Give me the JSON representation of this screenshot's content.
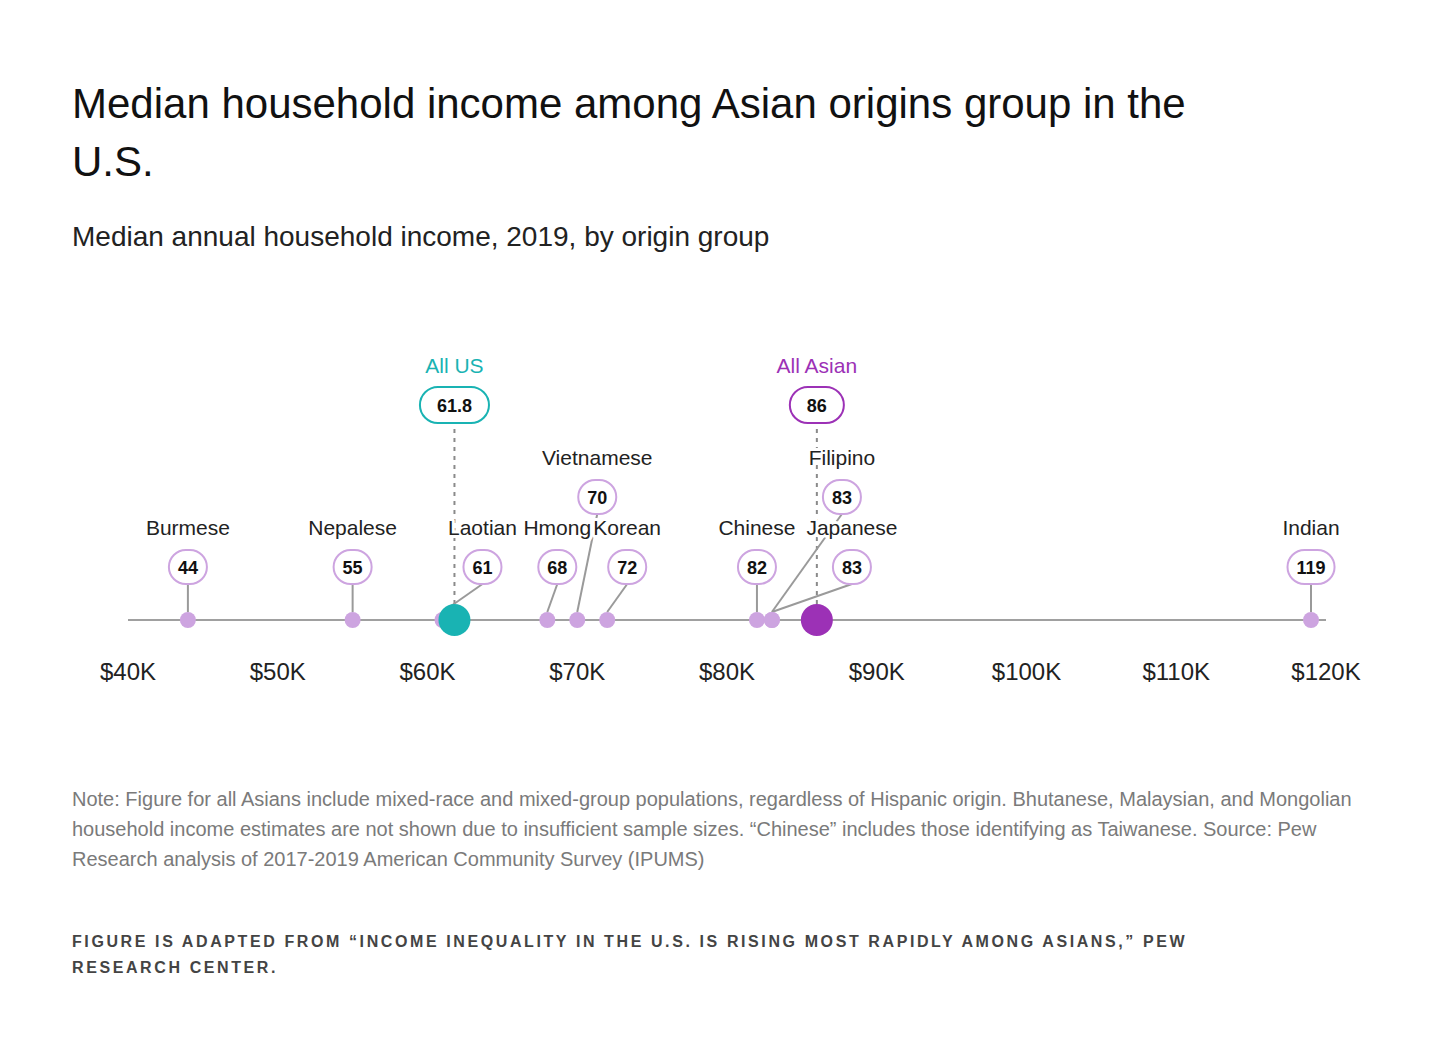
{
  "chart_data": {
    "type": "dot",
    "title": "Median household income among Asian origins group in the U.S.",
    "subtitle": "Median annual household income, 2019, by origin group",
    "categories": [
      "Burmese",
      "Nepalese",
      "Laotian",
      "All US",
      "Hmong",
      "Vietnamese",
      "Korean",
      "Chinese",
      "Japanese",
      "All Asian",
      "Filipino",
      "Indian"
    ],
    "values": [
      44,
      55,
      61,
      61.8,
      68,
      70,
      72,
      82,
      83,
      86,
      83,
      119
    ],
    "colors": [
      "#cda4e0",
      "#cda4e0",
      "#cda4e0",
      "#19b3b3",
      "#cda4e0",
      "#cda4e0",
      "#cda4e0",
      "#cda4e0",
      "#cda4e0",
      "#9c31b6",
      "#cda4e0",
      "#cda4e0"
    ],
    "xlim": [
      40,
      120
    ],
    "xticks": [
      {
        "value": 40,
        "label": "$40K"
      },
      {
        "value": 50,
        "label": "$50K"
      },
      {
        "value": 60,
        "label": "$60K"
      },
      {
        "value": 70,
        "label": "$70K"
      },
      {
        "value": 80,
        "label": "$80K"
      },
      {
        "value": 90,
        "label": "$90K"
      },
      {
        "value": 100,
        "label": "$100K"
      },
      {
        "value": 110,
        "label": "$110K"
      },
      {
        "value": 120,
        "label": "$120K"
      }
    ],
    "grid": false,
    "data_labels": true,
    "note": "Note: Figure for all Asians include mixed-race and mixed-group populations, regardless of Hispanic origin. Bhutanese, Malaysian, and Mongolian household income estimates are not shown due to insufficient sample sizes. “Chinese” includes those identifying as Taiwanese. Source: Pew Research analysis of 2017-2019 American Community Survey (IPUMS)",
    "credit": "FIGURE IS ADAPTED FROM “INCOME INEQUALITY IN THE U.S. IS RISING MOST RAPIDLY AMONG ASIANS,” PEW RESEARCH CENTER."
  }
}
